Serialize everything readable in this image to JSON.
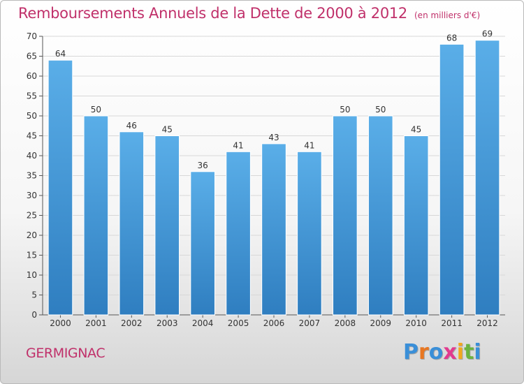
{
  "header": {
    "title": "Remboursements Annuels de la Dette de 2000 à 2012",
    "unit": "(en milliers d'€)"
  },
  "footer": {
    "commune": "GERMIGNAC",
    "logo": {
      "text": "Proxiti",
      "letters": [
        {
          "char": "P",
          "color": "#3a8fd8"
        },
        {
          "char": "r",
          "color": "#e87722"
        },
        {
          "char": "o",
          "color": "#3a8fd8"
        },
        {
          "char": "x",
          "color": "#e23a8f"
        },
        {
          "char": "i",
          "color": "#f2a81d"
        },
        {
          "char": "t",
          "color": "#6cb33f"
        },
        {
          "char": "i",
          "color": "#3a8fd8"
        }
      ]
    }
  },
  "colors": {
    "title": "#c0306a",
    "bar_top": "#5aaee8",
    "bar_bottom": "#2f7ec0",
    "grid": "#d8d8d8"
  },
  "chart_data": {
    "type": "bar",
    "categories": [
      "2000",
      "2001",
      "2002",
      "2003",
      "2004",
      "2005",
      "2006",
      "2007",
      "2008",
      "2009",
      "2010",
      "2011",
      "2012"
    ],
    "values": [
      64,
      50,
      46,
      45,
      36,
      41,
      43,
      41,
      50,
      50,
      45,
      68,
      69
    ],
    "title": "Remboursements Annuels de la Dette de 2000 à 2012",
    "ylim": [
      0,
      70
    ],
    "yticks": [
      0,
      5,
      10,
      15,
      20,
      25,
      30,
      35,
      40,
      45,
      50,
      55,
      60,
      65,
      70
    ],
    "grid": true,
    "data_labels": true
  }
}
